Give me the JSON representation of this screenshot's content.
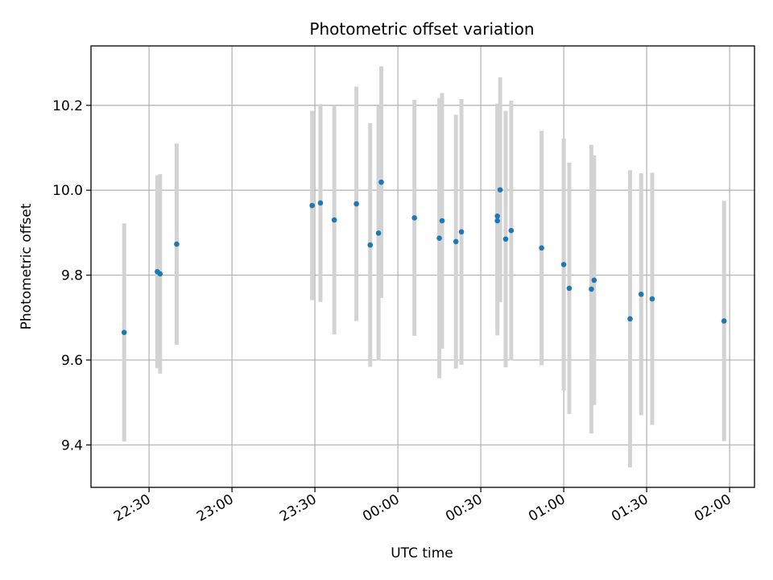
{
  "chart_data": {
    "type": "scatter",
    "title": "Photometric offset variation",
    "xlabel": "UTC time",
    "ylabel": "Photometric offset",
    "x_unit": "UTC time (HH:MM)",
    "xlim": [
      "22:09",
      "02:09"
    ],
    "ylim": [
      9.3,
      10.34
    ],
    "x_ticks": [
      "22:30",
      "23:00",
      "23:30",
      "00:00",
      "00:30",
      "01:00",
      "01:30",
      "02:00"
    ],
    "y_ticks": [
      "9.4",
      "9.6",
      "9.8",
      "10.0",
      "10.2"
    ],
    "grid": true,
    "marker_color": "#1f77b4",
    "errorbar_color": "#d3d3d3",
    "series": [
      {
        "points": [
          {
            "x": "22:21",
            "y": 9.665,
            "err": 0.257
          },
          {
            "x": "22:33",
            "y": 9.808,
            "err": 0.227
          },
          {
            "x": "22:34",
            "y": 9.803,
            "err": 0.235
          },
          {
            "x": "22:40",
            "y": 9.873,
            "err": 0.237
          },
          {
            "x": "23:29",
            "y": 9.964,
            "err": 0.223
          },
          {
            "x": "23:32",
            "y": 9.97,
            "err": 0.233
          },
          {
            "x": "23:37",
            "y": 9.93,
            "err": 0.27
          },
          {
            "x": "23:45",
            "y": 9.968,
            "err": 0.276
          },
          {
            "x": "23:50",
            "y": 9.871,
            "err": 0.287
          },
          {
            "x": "23:53",
            "y": 9.899,
            "err": 0.3
          },
          {
            "x": "23:54",
            "y": 10.019,
            "err": 0.273
          },
          {
            "x": "00:06",
            "y": 9.935,
            "err": 0.278
          },
          {
            "x": "00:15",
            "y": 9.887,
            "err": 0.33
          },
          {
            "x": "00:16",
            "y": 9.928,
            "err": 0.301
          },
          {
            "x": "00:21",
            "y": 9.879,
            "err": 0.299
          },
          {
            "x": "00:23",
            "y": 9.902,
            "err": 0.313
          },
          {
            "x": "00:36",
            "y": 9.928,
            "err": 0.27
          },
          {
            "x": "00:36",
            "y": 9.939,
            "err": 0.265
          },
          {
            "x": "00:37",
            "y": 10.001,
            "err": 0.265
          },
          {
            "x": "00:39",
            "y": 9.885,
            "err": 0.302
          },
          {
            "x": "00:41",
            "y": 9.905,
            "err": 0.306
          },
          {
            "x": "00:52",
            "y": 9.864,
            "err": 0.276
          },
          {
            "x": "01:00",
            "y": 9.825,
            "err": 0.297
          },
          {
            "x": "01:02",
            "y": 9.769,
            "err": 0.296
          },
          {
            "x": "01:10",
            "y": 9.767,
            "err": 0.34
          },
          {
            "x": "01:11",
            "y": 9.788,
            "err": 0.294
          },
          {
            "x": "01:24",
            "y": 9.697,
            "err": 0.35
          },
          {
            "x": "01:28",
            "y": 9.755,
            "err": 0.285
          },
          {
            "x": "01:32",
            "y": 9.744,
            "err": 0.297
          },
          {
            "x": "01:58",
            "y": 9.692,
            "err": 0.283
          }
        ]
      }
    ]
  }
}
